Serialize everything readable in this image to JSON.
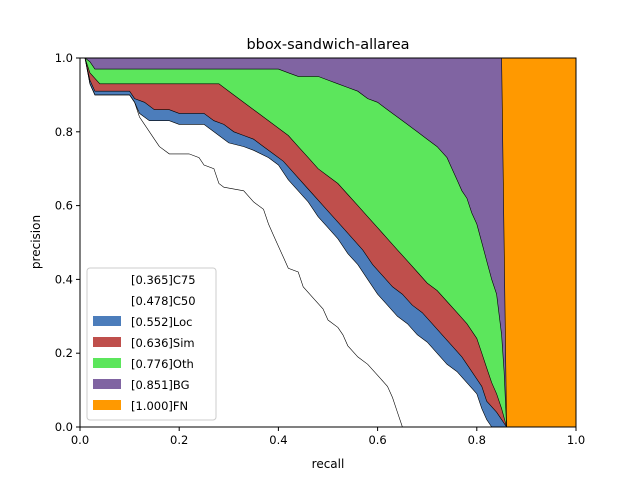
{
  "chart_data": {
    "type": "area",
    "title": "bbox-sandwich-allarea",
    "xlabel": "recall",
    "ylabel": "precision",
    "xlim": [
      0,
      1
    ],
    "ylim": [
      0,
      1
    ],
    "xticks": [
      "0.0",
      "0.2",
      "0.4",
      "0.6",
      "0.8",
      "1.0"
    ],
    "yticks": [
      "0.0",
      "0.2",
      "0.4",
      "0.6",
      "0.8",
      "1.0"
    ],
    "legend_position": "lower-left",
    "grid": false,
    "series": [
      {
        "name": "[0.365]C75",
        "color": "#ffffff",
        "points": [
          [
            0,
            1
          ],
          [
            0.01,
            1
          ],
          [
            0.02,
            0.93
          ],
          [
            0.03,
            0.9
          ],
          [
            0.1,
            0.9
          ],
          [
            0.11,
            0.88
          ],
          [
            0.12,
            0.84
          ],
          [
            0.13,
            0.82
          ],
          [
            0.15,
            0.78
          ],
          [
            0.16,
            0.76
          ],
          [
            0.18,
            0.74
          ],
          [
            0.22,
            0.74
          ],
          [
            0.24,
            0.73
          ],
          [
            0.25,
            0.71
          ],
          [
            0.27,
            0.7
          ],
          [
            0.28,
            0.66
          ],
          [
            0.29,
            0.65
          ],
          [
            0.33,
            0.64
          ],
          [
            0.35,
            0.61
          ],
          [
            0.37,
            0.59
          ],
          [
            0.38,
            0.55
          ],
          [
            0.39,
            0.52
          ],
          [
            0.4,
            0.49
          ],
          [
            0.41,
            0.46
          ],
          [
            0.42,
            0.43
          ],
          [
            0.44,
            0.42
          ],
          [
            0.45,
            0.38
          ],
          [
            0.47,
            0.35
          ],
          [
            0.49,
            0.32
          ],
          [
            0.5,
            0.29
          ],
          [
            0.52,
            0.27
          ],
          [
            0.53,
            0.25
          ],
          [
            0.54,
            0.22
          ],
          [
            0.56,
            0.19
          ],
          [
            0.58,
            0.17
          ],
          [
            0.6,
            0.14
          ],
          [
            0.62,
            0.11
          ],
          [
            0.63,
            0.08
          ],
          [
            0.64,
            0.04
          ],
          [
            0.65,
            0.0
          ]
        ]
      },
      {
        "name": "[0.478]C50",
        "color": "#ffffff",
        "points": [
          [
            0,
            1
          ],
          [
            0.01,
            1
          ],
          [
            0.02,
            0.93
          ],
          [
            0.03,
            0.9
          ],
          [
            0.1,
            0.9
          ],
          [
            0.11,
            0.88
          ],
          [
            0.12,
            0.85
          ],
          [
            0.14,
            0.83
          ],
          [
            0.18,
            0.83
          ],
          [
            0.2,
            0.82
          ],
          [
            0.25,
            0.82
          ],
          [
            0.27,
            0.8
          ],
          [
            0.28,
            0.79
          ],
          [
            0.3,
            0.77
          ],
          [
            0.33,
            0.76
          ],
          [
            0.35,
            0.75
          ],
          [
            0.38,
            0.73
          ],
          [
            0.4,
            0.71
          ],
          [
            0.42,
            0.67
          ],
          [
            0.44,
            0.64
          ],
          [
            0.46,
            0.61
          ],
          [
            0.48,
            0.57
          ],
          [
            0.5,
            0.54
          ],
          [
            0.52,
            0.51
          ],
          [
            0.54,
            0.47
          ],
          [
            0.56,
            0.44
          ],
          [
            0.58,
            0.4
          ],
          [
            0.6,
            0.36
          ],
          [
            0.62,
            0.33
          ],
          [
            0.64,
            0.3
          ],
          [
            0.66,
            0.28
          ],
          [
            0.68,
            0.25
          ],
          [
            0.7,
            0.23
          ],
          [
            0.72,
            0.2
          ],
          [
            0.74,
            0.17
          ],
          [
            0.76,
            0.15
          ],
          [
            0.78,
            0.12
          ],
          [
            0.8,
            0.09
          ],
          [
            0.81,
            0.05
          ],
          [
            0.82,
            0.02
          ],
          [
            0.83,
            0.0
          ]
        ]
      },
      {
        "name": "[0.552]Loc",
        "color": "#4c7dbb",
        "points": [
          [
            0,
            1
          ],
          [
            0.01,
            1
          ],
          [
            0.02,
            0.94
          ],
          [
            0.03,
            0.91
          ],
          [
            0.1,
            0.91
          ],
          [
            0.11,
            0.89
          ],
          [
            0.13,
            0.88
          ],
          [
            0.15,
            0.86
          ],
          [
            0.18,
            0.86
          ],
          [
            0.2,
            0.85
          ],
          [
            0.25,
            0.85
          ],
          [
            0.27,
            0.83
          ],
          [
            0.29,
            0.82
          ],
          [
            0.31,
            0.8
          ],
          [
            0.33,
            0.79
          ],
          [
            0.35,
            0.78
          ],
          [
            0.37,
            0.76
          ],
          [
            0.39,
            0.74
          ],
          [
            0.41,
            0.72
          ],
          [
            0.43,
            0.69
          ],
          [
            0.45,
            0.66
          ],
          [
            0.47,
            0.63
          ],
          [
            0.49,
            0.6
          ],
          [
            0.51,
            0.57
          ],
          [
            0.53,
            0.54
          ],
          [
            0.55,
            0.51
          ],
          [
            0.57,
            0.48
          ],
          [
            0.59,
            0.44
          ],
          [
            0.61,
            0.41
          ],
          [
            0.63,
            0.38
          ],
          [
            0.65,
            0.36
          ],
          [
            0.67,
            0.33
          ],
          [
            0.69,
            0.31
          ],
          [
            0.71,
            0.28
          ],
          [
            0.73,
            0.25
          ],
          [
            0.75,
            0.22
          ],
          [
            0.77,
            0.19
          ],
          [
            0.79,
            0.15
          ],
          [
            0.81,
            0.11
          ],
          [
            0.82,
            0.07
          ],
          [
            0.84,
            0.04
          ],
          [
            0.85,
            0.02
          ],
          [
            0.86,
            0.0
          ]
        ]
      },
      {
        "name": "[0.636]Sim",
        "color": "#bf4f4c",
        "points": [
          [
            0,
            1
          ],
          [
            0.01,
            1
          ],
          [
            0.02,
            0.96
          ],
          [
            0.04,
            0.93
          ],
          [
            0.1,
            0.93
          ],
          [
            0.12,
            0.93
          ],
          [
            0.2,
            0.93
          ],
          [
            0.28,
            0.93
          ],
          [
            0.3,
            0.91
          ],
          [
            0.32,
            0.89
          ],
          [
            0.34,
            0.87
          ],
          [
            0.36,
            0.85
          ],
          [
            0.38,
            0.83
          ],
          [
            0.4,
            0.81
          ],
          [
            0.42,
            0.79
          ],
          [
            0.44,
            0.76
          ],
          [
            0.46,
            0.73
          ],
          [
            0.48,
            0.7
          ],
          [
            0.5,
            0.68
          ],
          [
            0.52,
            0.66
          ],
          [
            0.54,
            0.63
          ],
          [
            0.56,
            0.6
          ],
          [
            0.58,
            0.57
          ],
          [
            0.6,
            0.54
          ],
          [
            0.62,
            0.51
          ],
          [
            0.64,
            0.48
          ],
          [
            0.66,
            0.45
          ],
          [
            0.68,
            0.42
          ],
          [
            0.7,
            0.39
          ],
          [
            0.72,
            0.37
          ],
          [
            0.74,
            0.34
          ],
          [
            0.76,
            0.31
          ],
          [
            0.78,
            0.28
          ],
          [
            0.8,
            0.24
          ],
          [
            0.81,
            0.2
          ],
          [
            0.82,
            0.16
          ],
          [
            0.83,
            0.12
          ],
          [
            0.84,
            0.09
          ],
          [
            0.85,
            0.05
          ],
          [
            0.86,
            0.0
          ]
        ]
      },
      {
        "name": "[0.776]Oth",
        "color": "#5ce65c",
        "points": [
          [
            0,
            1
          ],
          [
            0.01,
            1
          ],
          [
            0.02,
            0.99
          ],
          [
            0.03,
            0.97
          ],
          [
            0.1,
            0.97
          ],
          [
            0.2,
            0.97
          ],
          [
            0.3,
            0.97
          ],
          [
            0.4,
            0.97
          ],
          [
            0.42,
            0.96
          ],
          [
            0.44,
            0.95
          ],
          [
            0.46,
            0.95
          ],
          [
            0.48,
            0.95
          ],
          [
            0.5,
            0.94
          ],
          [
            0.52,
            0.93
          ],
          [
            0.54,
            0.92
          ],
          [
            0.56,
            0.91
          ],
          [
            0.58,
            0.89
          ],
          [
            0.6,
            0.88
          ],
          [
            0.62,
            0.86
          ],
          [
            0.64,
            0.84
          ],
          [
            0.66,
            0.82
          ],
          [
            0.68,
            0.8
          ],
          [
            0.7,
            0.78
          ],
          [
            0.72,
            0.76
          ],
          [
            0.74,
            0.73
          ],
          [
            0.75,
            0.7
          ],
          [
            0.76,
            0.67
          ],
          [
            0.77,
            0.64
          ],
          [
            0.78,
            0.62
          ],
          [
            0.79,
            0.58
          ],
          [
            0.8,
            0.55
          ],
          [
            0.81,
            0.5
          ],
          [
            0.82,
            0.45
          ],
          [
            0.83,
            0.4
          ],
          [
            0.84,
            0.36
          ],
          [
            0.85,
            0.25
          ],
          [
            0.855,
            0.15
          ],
          [
            0.86,
            0.0
          ]
        ]
      },
      {
        "name": "[0.851]BG",
        "color": "#8064a2",
        "points": [
          [
            0,
            1
          ],
          [
            0.85,
            1
          ],
          [
            0.86,
            0.0
          ]
        ]
      },
      {
        "name": "[1.000]FN",
        "color": "#ff9900",
        "points": [
          [
            0,
            1
          ],
          [
            1,
            1
          ],
          [
            1,
            0
          ]
        ]
      }
    ]
  }
}
